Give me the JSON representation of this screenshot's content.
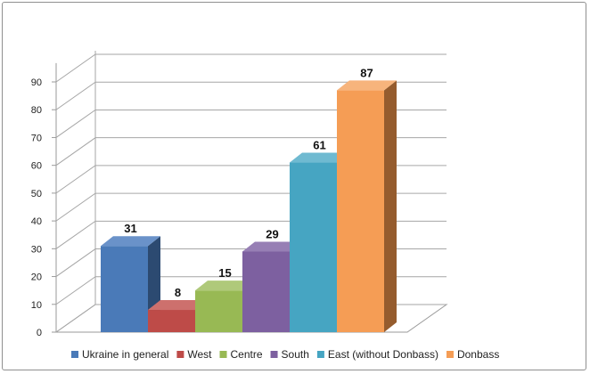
{
  "chart_data": {
    "type": "bar",
    "style": "3d-column",
    "categories": [
      "Ukraine in general",
      "West",
      "Centre",
      "South",
      "East (without Donbass)",
      "Donbass"
    ],
    "values": [
      31,
      8,
      15,
      29,
      61,
      87
    ],
    "ylim": [
      0,
      90
    ],
    "yticks": [
      "0",
      "10",
      "20",
      "30",
      "40",
      "50",
      "60",
      "70",
      "80",
      "90"
    ],
    "grid": true,
    "legend_position": "bottom",
    "colors": [
      "#4a7ab8",
      "#be4b48",
      "#98b954",
      "#7d60a0",
      "#46a5c2",
      "#f59d55"
    ],
    "side_colors": [
      "#2c4a71",
      "#73292a",
      "#5c7132",
      "#4b3a60",
      "#2a6676",
      "#955c2e"
    ],
    "top_colors": [
      "#6a92c9",
      "#cd706d",
      "#afc97a",
      "#977fb5",
      "#6fbad1",
      "#f7b47c"
    ]
  }
}
